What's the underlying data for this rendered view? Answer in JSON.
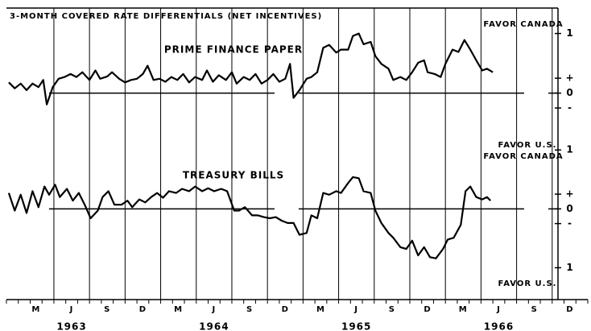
{
  "chart_data": {
    "type": "line",
    "title": "3-MONTH COVERED RATE DIFFERENTIALS (NET INCENTIVES)",
    "xlim": [
      0,
      49
    ],
    "xticks": [
      {
        "value": 2.5,
        "label": "M"
      },
      {
        "value": 5.5,
        "label": "J"
      },
      {
        "value": 8.5,
        "label": "S"
      },
      {
        "value": 11.5,
        "label": "D"
      },
      {
        "value": 14.5,
        "label": "M"
      },
      {
        "value": 17.5,
        "label": "J"
      },
      {
        "value": 20.5,
        "label": "S"
      },
      {
        "value": 23.5,
        "label": "D"
      },
      {
        "value": 26.5,
        "label": "M"
      },
      {
        "value": 29.5,
        "label": "J"
      },
      {
        "value": 32.5,
        "label": "S"
      },
      {
        "value": 35.5,
        "label": "D"
      },
      {
        "value": 38.5,
        "label": "M"
      },
      {
        "value": 41.5,
        "label": "J"
      },
      {
        "value": 44.5,
        "label": "S"
      },
      {
        "value": 47.5,
        "label": "D"
      }
    ],
    "year_ticks": [
      {
        "value": 5.5,
        "label": 1963
      },
      {
        "value": 17.5,
        "label": 1964
      },
      {
        "value": 29.5,
        "label": 1965
      },
      {
        "value": 41.5,
        "label": 1966
      }
    ],
    "xgrid": [
      4,
      7,
      10,
      13,
      16,
      19,
      22,
      25,
      28,
      31,
      34,
      37,
      40,
      43,
      46
    ],
    "color": "#000000",
    "panels": [
      {
        "name": "PRIME FINANCE PAPER",
        "top_label": "FAVOR CANADA",
        "bottom_label": "FAVOR U.S.",
        "ylim": [
          -0.6,
          1.4
        ],
        "yticks": [
          1,
          {
            "value": 0.25,
            "label": "+"
          },
          0,
          {
            "value": -0.25,
            "label": "-"
          }
        ],
        "x": [
          0.2,
          0.7,
          1.2,
          1.7,
          2.2,
          2.7,
          3.1,
          3.4,
          3.9,
          4.4,
          4.9,
          5.4,
          5.9,
          6.4,
          7.0,
          7.5,
          7.9,
          8.5,
          8.9,
          9.5,
          10,
          10.5,
          11,
          11.5,
          11.9,
          12.4,
          12.9,
          13.4,
          13.9,
          14.4,
          14.9,
          15.4,
          15.9,
          16.5,
          16.9,
          17.4,
          17.9,
          18.5,
          19,
          19.4,
          20,
          20.5,
          21,
          21.5,
          22,
          22.5,
          23,
          23.5,
          23.9,
          24.2,
          24.7,
          25.3,
          25.7,
          26.2,
          26.7,
          27.2,
          27.8,
          28.2,
          28.8,
          29.2,
          29.7,
          30.1,
          30.7,
          31.1,
          31.6,
          32.2,
          32.6,
          33.2,
          33.7,
          34.2,
          34.7,
          35.2,
          35.5,
          36.1,
          36.6,
          37,
          37.6,
          38.1,
          38.6,
          39.1,
          39.6,
          40.1,
          40.5,
          41
        ],
        "values": [
          0.18,
          0.08,
          0.16,
          0.05,
          0.16,
          0.1,
          0.22,
          -0.19,
          0.1,
          0.24,
          0.27,
          0.32,
          0.27,
          0.35,
          0.22,
          0.38,
          0.24,
          0.28,
          0.35,
          0.24,
          0.18,
          0.22,
          0.24,
          0.32,
          0.46,
          0.22,
          0.24,
          0.19,
          0.27,
          0.22,
          0.32,
          0.18,
          0.27,
          0.22,
          0.38,
          0.19,
          0.3,
          0.22,
          0.35,
          0.16,
          0.27,
          0.22,
          0.32,
          0.16,
          0.22,
          0.32,
          0.19,
          0.24,
          0.49,
          -0.08,
          0.05,
          0.24,
          0.27,
          0.35,
          0.76,
          0.81,
          0.68,
          0.73,
          0.73,
          0.96,
          1,
          0.82,
          0.86,
          0.62,
          0.49,
          0.41,
          0.22,
          0.27,
          0.22,
          0.35,
          0.51,
          0.55,
          0.35,
          0.32,
          0.27,
          0.49,
          0.73,
          0.69,
          0.89,
          0.73,
          0.55,
          0.38,
          0.41,
          0.35
        ]
      },
      {
        "name": "TREASURY BILLS",
        "top_label": "FAVOR CANADA",
        "bottom_label": "FAVOR U.S.",
        "ylim": [
          -1.5,
          1.4
        ],
        "yticks": [
          1,
          {
            "value": 0.25,
            "label": "+"
          },
          0,
          {
            "value": -0.25,
            "label": "-"
          },
          {
            "value": -1,
            "label": "1"
          }
        ],
        "x": [
          0.2,
          0.7,
          1.2,
          1.7,
          2.2,
          2.7,
          3.2,
          3.6,
          4.1,
          4.5,
          5.1,
          5.6,
          6.1,
          6.6,
          7.1,
          7.7,
          8.1,
          8.6,
          9.1,
          9.7,
          10.2,
          10.6,
          11.2,
          11.7,
          12.2,
          12.7,
          13.2,
          13.7,
          14.3,
          14.8,
          15.4,
          15.9,
          16.5,
          17.0,
          17.5,
          18.1,
          18.6,
          19.2,
          19.6,
          20.1,
          20.7,
          21.2,
          21.7,
          22.2,
          22.7,
          23.2,
          23.7,
          24.2,
          24.7,
          25.3,
          25.7,
          26.2,
          26.7,
          27.2,
          27.8,
          28.2,
          28.8,
          29.2,
          29.7,
          30.1,
          30.7,
          31.1,
          31.6,
          32.2,
          32.6,
          33.2,
          33.7,
          34.2,
          34.7,
          35.2,
          35.7,
          36.2,
          36.8,
          37.2,
          37.7,
          38.3,
          38.7,
          39.1,
          39.6,
          40.1,
          40.5,
          40.8
        ],
        "values": [
          0.27,
          -0.03,
          0.24,
          -0.07,
          0.3,
          0.03,
          0.38,
          0.24,
          0.41,
          0.2,
          0.34,
          0.14,
          0.27,
          0.07,
          -0.16,
          -0.03,
          0.2,
          0.3,
          0.07,
          0.07,
          0.14,
          0.03,
          0.16,
          0.11,
          0.2,
          0.27,
          0.19,
          0.3,
          0.27,
          0.34,
          0.3,
          0.38,
          0.3,
          0.35,
          0.3,
          0.34,
          0.3,
          -0.03,
          -0.03,
          0.03,
          -0.11,
          -0.11,
          -0.14,
          -0.16,
          -0.14,
          -0.2,
          -0.24,
          -0.24,
          -0.44,
          -0.41,
          -0.11,
          -0.16,
          0.27,
          0.24,
          0.3,
          0.27,
          0.44,
          0.54,
          0.52,
          0.3,
          0.27,
          -0.03,
          -0.24,
          -0.41,
          -0.49,
          -0.65,
          -0.68,
          -0.54,
          -0.79,
          -0.65,
          -0.82,
          -0.84,
          -0.68,
          -0.52,
          -0.49,
          -0.27,
          0.3,
          0.38,
          0.2,
          0.16,
          0.2,
          0.14
        ]
      }
    ]
  }
}
